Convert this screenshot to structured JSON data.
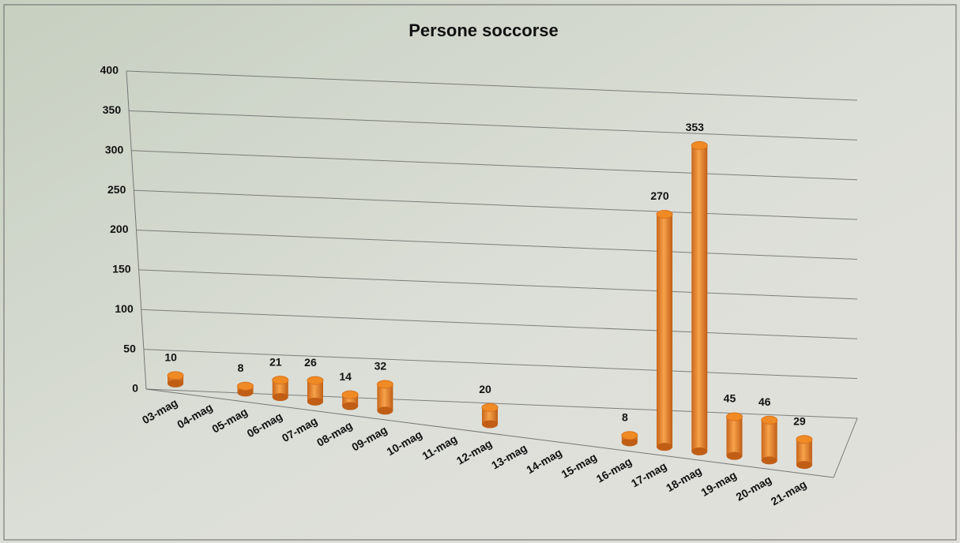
{
  "chart_data": {
    "type": "bar3d",
    "title": "Persone soccorse",
    "categories": [
      "03-mag",
      "04-mag",
      "05-mag",
      "06-mag",
      "07-mag",
      "08-mag",
      "09-mag",
      "10-mag",
      "11-mag",
      "12-mag",
      "13-mag",
      "14-mag",
      "15-mag",
      "16-mag",
      "17-mag",
      "18-mag",
      "19-mag",
      "20-mag",
      "21-mag"
    ],
    "values": [
      10,
      null,
      8,
      21,
      26,
      14,
      32,
      null,
      null,
      20,
      null,
      null,
      null,
      8,
      270,
      353,
      45,
      46,
      29
    ],
    "color": "#f08a24",
    "ylim": [
      0,
      400
    ],
    "yticks": [
      0,
      50,
      100,
      150,
      200,
      250,
      300,
      350,
      400
    ],
    "grid": true
  }
}
